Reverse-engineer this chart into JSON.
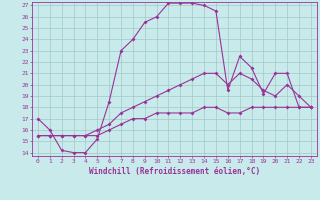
{
  "xlabel": "Windchill (Refroidissement éolien,°C)",
  "bg_color": "#c8eaea",
  "grid_color": "#a0c8c8",
  "line_color": "#993399",
  "xlim": [
    -0.5,
    23.5
  ],
  "ylim": [
    13.7,
    27.3
  ],
  "xticks": [
    0,
    1,
    2,
    3,
    4,
    5,
    6,
    7,
    8,
    9,
    10,
    11,
    12,
    13,
    14,
    15,
    16,
    17,
    18,
    19,
    20,
    21,
    22,
    23
  ],
  "yticks": [
    14,
    15,
    16,
    17,
    18,
    19,
    20,
    21,
    22,
    23,
    24,
    25,
    26,
    27
  ],
  "line1_x": [
    0,
    1,
    2,
    3,
    4,
    5,
    6,
    7,
    8,
    9,
    10,
    11,
    12,
    13,
    14,
    15,
    16,
    17,
    18,
    19,
    20,
    21,
    22,
    23
  ],
  "line1_y": [
    17.0,
    16.0,
    14.2,
    14.0,
    14.0,
    15.2,
    18.5,
    23.0,
    24.0,
    25.5,
    26.0,
    27.2,
    27.2,
    27.2,
    27.0,
    26.5,
    19.5,
    22.5,
    21.5,
    19.2,
    21.0,
    21.0,
    18.0,
    18.0
  ],
  "line2_x": [
    0,
    1,
    2,
    3,
    4,
    5,
    6,
    7,
    8,
    9,
    10,
    11,
    12,
    13,
    14,
    15,
    16,
    17,
    18,
    19,
    20,
    21,
    22,
    23
  ],
  "line2_y": [
    15.5,
    15.5,
    15.5,
    15.5,
    15.5,
    16.0,
    16.5,
    17.5,
    18.0,
    18.5,
    19.0,
    19.5,
    20.0,
    20.5,
    21.0,
    21.0,
    20.0,
    21.0,
    20.5,
    19.5,
    19.0,
    20.0,
    19.0,
    18.0
  ],
  "line3_x": [
    0,
    1,
    2,
    3,
    4,
    5,
    6,
    7,
    8,
    9,
    10,
    11,
    12,
    13,
    14,
    15,
    16,
    17,
    18,
    19,
    20,
    21,
    22,
    23
  ],
  "line3_y": [
    15.5,
    15.5,
    15.5,
    15.5,
    15.5,
    15.5,
    16.0,
    16.5,
    17.0,
    17.0,
    17.5,
    17.5,
    17.5,
    17.5,
    18.0,
    18.0,
    17.5,
    17.5,
    18.0,
    18.0,
    18.0,
    18.0,
    18.0,
    18.0
  ]
}
